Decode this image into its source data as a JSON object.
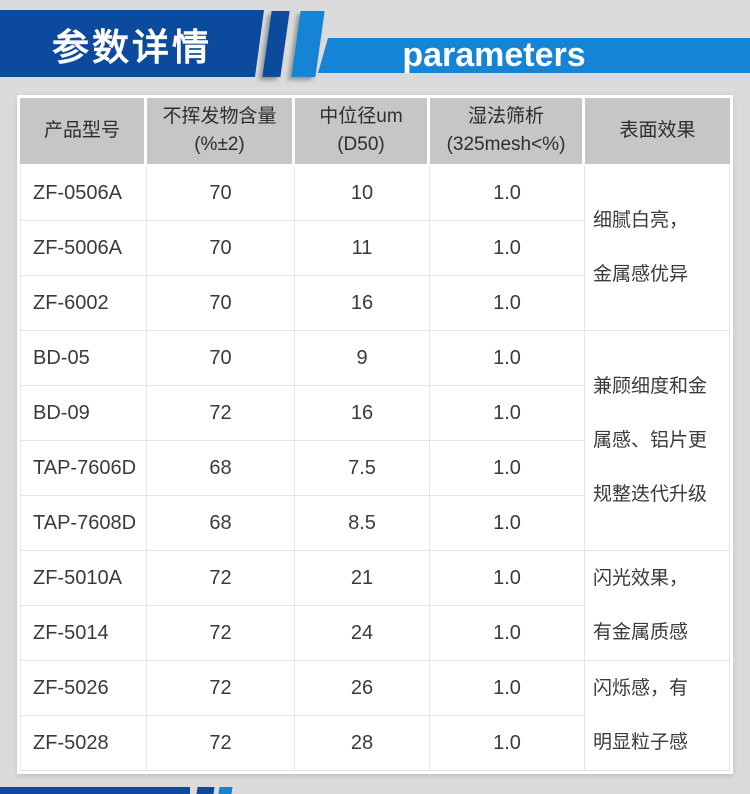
{
  "header": {
    "title_zh": "参数详情",
    "title_en": "parameters"
  },
  "colors": {
    "dark_blue": "#0c4a9e",
    "light_blue": "#1583d6",
    "header_gray": "#c6c6c6",
    "page_bg": "#dbdbdb",
    "body_text": "#3a3a3a"
  },
  "table": {
    "columns": [
      {
        "line1": "产品型号",
        "line2": ""
      },
      {
        "line1": "不挥发物含量",
        "line2": "(%±2)"
      },
      {
        "line1": "中位径um",
        "line2": "(D50)"
      },
      {
        "line1": "湿法筛析",
        "line2": "(325mesh<%)"
      },
      {
        "line1": "表面效果",
        "line2": ""
      }
    ],
    "rows": [
      {
        "model": "ZF-0506A",
        "nonvolatile": "70",
        "median": "10",
        "sieve": "1.0"
      },
      {
        "model": "ZF-5006A",
        "nonvolatile": "70",
        "median": "11",
        "sieve": "1.0"
      },
      {
        "model": "ZF-6002",
        "nonvolatile": "70",
        "median": "16",
        "sieve": "1.0"
      },
      {
        "model": "BD-05",
        "nonvolatile": "70",
        "median": "9",
        "sieve": "1.0"
      },
      {
        "model": "BD-09",
        "nonvolatile": "72",
        "median": "16",
        "sieve": "1.0"
      },
      {
        "model": "TAP-7606D",
        "nonvolatile": "68",
        "median": "7.5",
        "sieve": "1.0"
      },
      {
        "model": "TAP-7608D",
        "nonvolatile": "68",
        "median": "8.5",
        "sieve": "1.0"
      },
      {
        "model": "ZF-5010A",
        "nonvolatile": "72",
        "median": "21",
        "sieve": "1.0"
      },
      {
        "model": "ZF-5014",
        "nonvolatile": "72",
        "median": "24",
        "sieve": "1.0"
      },
      {
        "model": "ZF-5026",
        "nonvolatile": "72",
        "median": "26",
        "sieve": "1.0"
      },
      {
        "model": "ZF-5028",
        "nonvolatile": "72",
        "median": "28",
        "sieve": "1.0"
      }
    ],
    "effects": [
      {
        "rowspan": 3,
        "lines": [
          "细腻白亮，",
          "金属感优异"
        ]
      },
      {
        "rowspan": 4,
        "lines": [
          "兼顾细度和金",
          "属感、铝片更",
          "规整迭代升级"
        ]
      },
      {
        "rowspan": 2,
        "lines": [
          "闪光效果，",
          "有金属质感"
        ]
      },
      {
        "rowspan": 2,
        "lines": [
          "闪烁感，有",
          "明显粒子感"
        ]
      }
    ]
  }
}
